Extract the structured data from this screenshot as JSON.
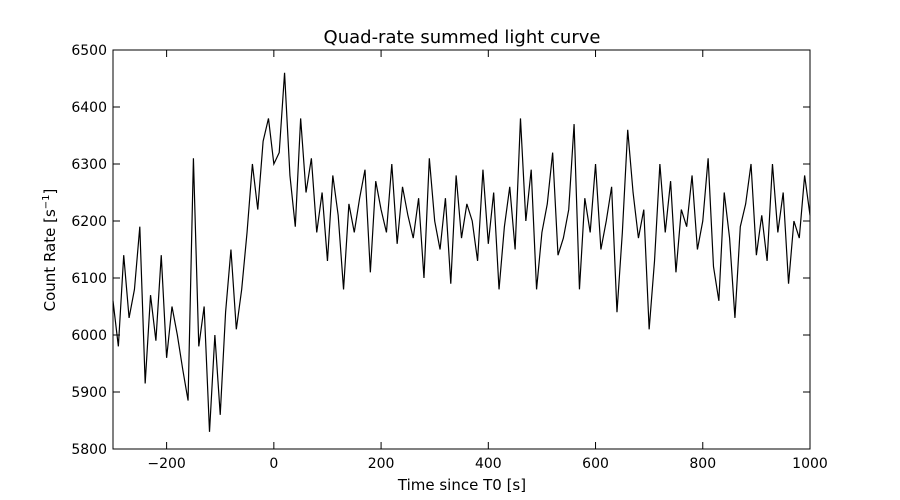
{
  "chart_data": {
    "type": "line",
    "title": "Quad-rate summed light curve",
    "xlabel": "Time since T0 [s]",
    "ylabel_main": "Count Rate [s",
    "ylabel_sup": "−1",
    "ylabel_close": "]",
    "xlim": [
      -300,
      1000
    ],
    "ylim": [
      5800,
      6500
    ],
    "xticks": [
      -200,
      0,
      200,
      400,
      600,
      800,
      1000
    ],
    "xtick_labels": [
      "−200",
      "0",
      "200",
      "400",
      "600",
      "800",
      "1000"
    ],
    "yticks": [
      5800,
      5900,
      6000,
      6100,
      6200,
      6300,
      6400,
      6500
    ],
    "ytick_labels": [
      "5800",
      "5900",
      "6000",
      "6100",
      "6200",
      "6300",
      "6400",
      "6500"
    ],
    "grid": false,
    "legend": "none",
    "line_color": "#000000",
    "series": [
      {
        "x": [
          -300,
          -290,
          -280,
          -270,
          -260,
          -250,
          -240,
          -230,
          -220,
          -210,
          -200,
          -190,
          -180,
          -170,
          -160,
          -150,
          -140,
          -130,
          -120,
          -110,
          -100,
          -90,
          -80,
          -70,
          -60,
          -50,
          -40,
          -30,
          -20,
          -10,
          0,
          10,
          20,
          30,
          40,
          50,
          60,
          70,
          80,
          90,
          100,
          110,
          120,
          130,
          140,
          150,
          160,
          170,
          180,
          190,
          200,
          210,
          220,
          230,
          240,
          250,
          260,
          270,
          280,
          290,
          300,
          310,
          320,
          330,
          340,
          350,
          360,
          370,
          380,
          390,
          400,
          410,
          420,
          430,
          440,
          450,
          460,
          470,
          480,
          490,
          500,
          510,
          520,
          530,
          540,
          550,
          560,
          570,
          580,
          590,
          600,
          610,
          620,
          630,
          640,
          650,
          660,
          670,
          680,
          690,
          700,
          710,
          720,
          730,
          740,
          750,
          760,
          770,
          780,
          790,
          800,
          810,
          820,
          830,
          840,
          850,
          860,
          870,
          880,
          890,
          900,
          910,
          920,
          930,
          940,
          950,
          960,
          970,
          980,
          990,
          1000
        ],
        "values": [
          6060,
          5980,
          6140,
          6030,
          6080,
          6190,
          5915,
          6070,
          5990,
          6140,
          5960,
          6050,
          6000,
          5940,
          5885,
          6310,
          5980,
          6050,
          5830,
          6000,
          5860,
          6040,
          6150,
          6010,
          6080,
          6180,
          6300,
          6220,
          6340,
          6380,
          6300,
          6320,
          6460,
          6280,
          6190,
          6380,
          6250,
          6310,
          6180,
          6250,
          6130,
          6280,
          6210,
          6080,
          6230,
          6180,
          6240,
          6290,
          6110,
          6270,
          6220,
          6180,
          6300,
          6160,
          6260,
          6210,
          6170,
          6240,
          6100,
          6310,
          6200,
          6150,
          6240,
          6090,
          6280,
          6170,
          6230,
          6200,
          6130,
          6290,
          6160,
          6250,
          6080,
          6190,
          6260,
          6150,
          6380,
          6200,
          6290,
          6080,
          6180,
          6230,
          6320,
          6140,
          6170,
          6220,
          6370,
          6080,
          6240,
          6180,
          6300,
          6150,
          6200,
          6260,
          6040,
          6180,
          6360,
          6250,
          6170,
          6220,
          6010,
          6130,
          6300,
          6180,
          6270,
          6110,
          6220,
          6190,
          6280,
          6150,
          6200,
          6310,
          6120,
          6060,
          6250,
          6170,
          6030,
          6190,
          6230,
          6300,
          6140,
          6210,
          6130,
          6300,
          6180,
          6250,
          6090,
          6200,
          6170,
          6280,
          6210
        ]
      }
    ]
  }
}
